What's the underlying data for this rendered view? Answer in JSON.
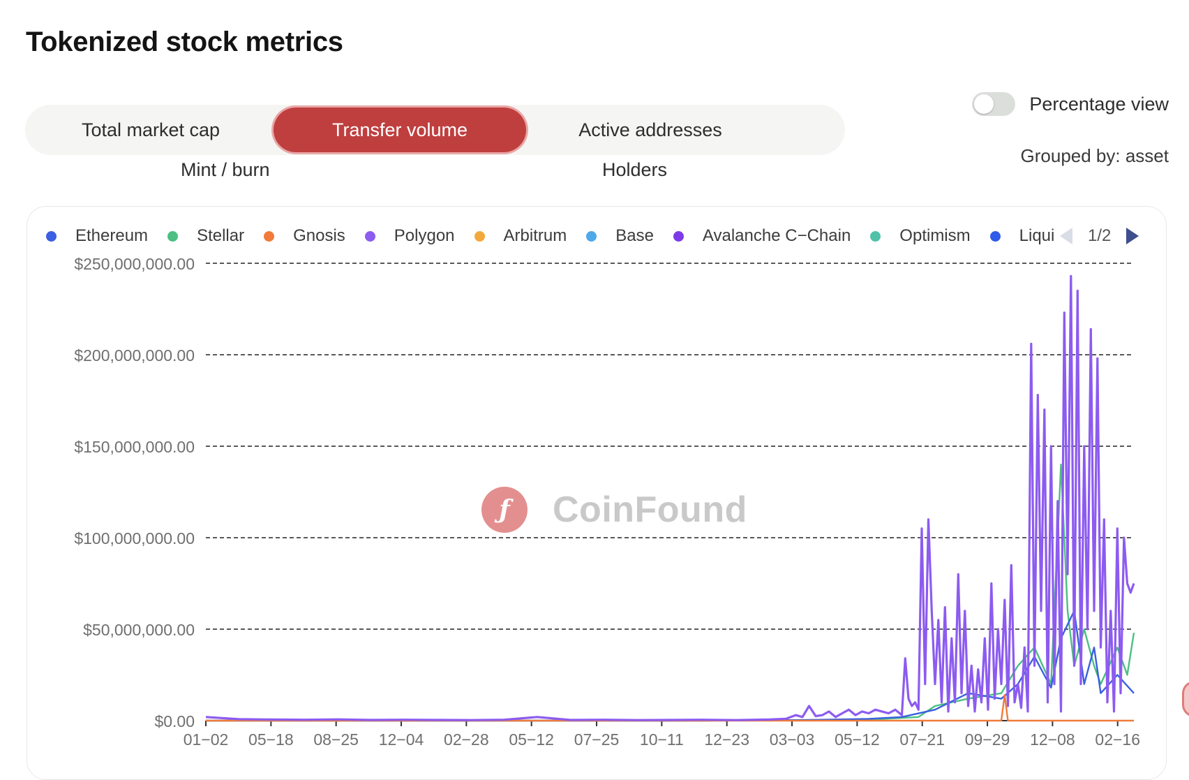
{
  "page": {
    "title": "Tokenized stock metrics"
  },
  "tabs": [
    {
      "label": "Total market cap",
      "active": false
    },
    {
      "label": "Transfer volume",
      "active": true
    },
    {
      "label": "Active addresses",
      "active": false
    },
    {
      "label": "Mint / burn",
      "active": false
    },
    {
      "label": "Holders",
      "active": false
    }
  ],
  "controls": {
    "percentage_view_label": "Percentage view",
    "percentage_view_on": false,
    "grouped_by": "Grouped by: asset"
  },
  "legend": {
    "items": [
      {
        "name": "Ethereum",
        "color": "#3a5fe0"
      },
      {
        "name": "Stellar",
        "color": "#4cbf82"
      },
      {
        "name": "Gnosis",
        "color": "#f07b3a"
      },
      {
        "name": "Polygon",
        "color": "#8c5bf0"
      },
      {
        "name": "Arbitrum",
        "color": "#f2a93b"
      },
      {
        "name": "Base",
        "color": "#4fa8e8"
      },
      {
        "name": "Avalanche C−Chain",
        "color": "#7d3be8"
      },
      {
        "name": "Optimism",
        "color": "#4ec2a8"
      },
      {
        "name": "Liquid Netw",
        "color": "#2f5be8"
      }
    ],
    "page": "1/2"
  },
  "watermark": {
    "text": "CoinFound",
    "logo_glyph": "ƒ"
  },
  "chart_data": {
    "type": "line",
    "x_tick_labels": [
      "01−02",
      "05−18",
      "08−25",
      "12−04",
      "02−28",
      "05−12",
      "07−25",
      "10−11",
      "12−23",
      "03−03",
      "05−12",
      "07−21",
      "09−29",
      "12−08",
      "02−16"
    ],
    "y_tick_labels": [
      "$0.00",
      "$50,000,000.00",
      "$100,000,000.00",
      "$150,000,000.00",
      "$200,000,000.00",
      "$250,000,000.00"
    ],
    "ylim": [
      0,
      250000000
    ],
    "grid": "horizontal dashed",
    "legend_position": "top",
    "series": [
      {
        "name": "Polygon",
        "color": "#8c5bf0",
        "x_index": [
          0,
          10,
          20,
          30,
          40,
          50,
          60,
          70,
          80,
          90,
          100,
          110,
          120,
          130,
          140,
          150,
          160,
          170,
          175,
          178,
          180,
          182,
          184,
          186,
          188,
          190,
          192,
          194,
          196,
          198,
          200,
          202,
          204,
          206,
          208,
          210,
          211,
          212,
          213,
          214,
          215,
          216,
          217,
          218,
          219,
          220,
          221,
          222,
          223,
          224,
          225,
          226,
          227,
          228,
          229,
          230,
          231,
          232,
          233,
          234,
          235,
          236,
          237,
          238,
          239,
          240,
          241,
          242,
          243,
          244,
          245,
          246,
          247,
          248,
          249,
          250,
          251,
          252,
          253,
          254,
          255,
          256,
          257,
          258,
          259,
          260,
          261,
          262,
          263,
          264,
          265,
          266,
          267,
          268,
          269,
          270,
          271,
          272,
          273,
          274,
          275,
          276,
          277,
          278,
          279,
          280
        ],
        "y": [
          2000000,
          800000,
          600000,
          500000,
          700000,
          400000,
          500000,
          400000,
          300000,
          500000,
          2000000,
          400000,
          500000,
          300000,
          400000,
          500000,
          300000,
          600000,
          1000000,
          3000000,
          2000000,
          8000000,
          2500000,
          3000000,
          5000000,
          2000000,
          4000000,
          6000000,
          3000000,
          5000000,
          4000000,
          6000000,
          5000000,
          4000000,
          6000000,
          3000000,
          34000000,
          12000000,
          8000000,
          10000000,
          6000000,
          105000000,
          20000000,
          110000000,
          60000000,
          20000000,
          55000000,
          10000000,
          62000000,
          5000000,
          45000000,
          10000000,
          80000000,
          15000000,
          60000000,
          8000000,
          30000000,
          5000000,
          28000000,
          10000000,
          45000000,
          6000000,
          75000000,
          12000000,
          50000000,
          20000000,
          66000000,
          8000000,
          85000000,
          10000000,
          20000000,
          7000000,
          40000000,
          5000000,
          206000000,
          30000000,
          178000000,
          60000000,
          170000000,
          10000000,
          150000000,
          20000000,
          120000000,
          5000000,
          223000000,
          80000000,
          243000000,
          30000000,
          235000000,
          20000000,
          150000000,
          50000000,
          214000000,
          60000000,
          198000000,
          40000000,
          110000000,
          10000000,
          60000000,
          5000000,
          105000000,
          15000000,
          100000000,
          75000000,
          70000000,
          75000000
        ]
      },
      {
        "name": "Stellar",
        "color": "#4cbf82",
        "x_index": [
          0,
          150,
          160,
          200,
          215,
          220,
          230,
          240,
          245,
          250,
          255,
          258,
          260,
          262,
          265,
          268,
          270,
          275,
          278,
          280
        ],
        "y": [
          0,
          0,
          200000,
          500000,
          2000000,
          8000000,
          12000000,
          15000000,
          30000000,
          40000000,
          20000000,
          140000000,
          60000000,
          30000000,
          50000000,
          30000000,
          20000000,
          40000000,
          25000000,
          48000000
        ]
      },
      {
        "name": "Ethereum",
        "color": "#3a5fe0",
        "x_index": [
          0,
          150,
          180,
          200,
          210,
          220,
          230,
          240,
          245,
          250,
          255,
          258,
          262,
          265,
          268,
          270,
          275,
          280
        ],
        "y": [
          0,
          0,
          300000,
          1000000,
          2000000,
          6000000,
          15000000,
          12000000,
          20000000,
          35000000,
          18000000,
          45000000,
          60000000,
          20000000,
          40000000,
          15000000,
          25000000,
          15000000
        ]
      },
      {
        "name": "Gnosis",
        "color": "#f07b3a",
        "x_index": [
          0,
          200,
          240,
          241,
          242,
          280
        ],
        "y": [
          0,
          0,
          0,
          14000000,
          0,
          0
        ]
      }
    ]
  }
}
